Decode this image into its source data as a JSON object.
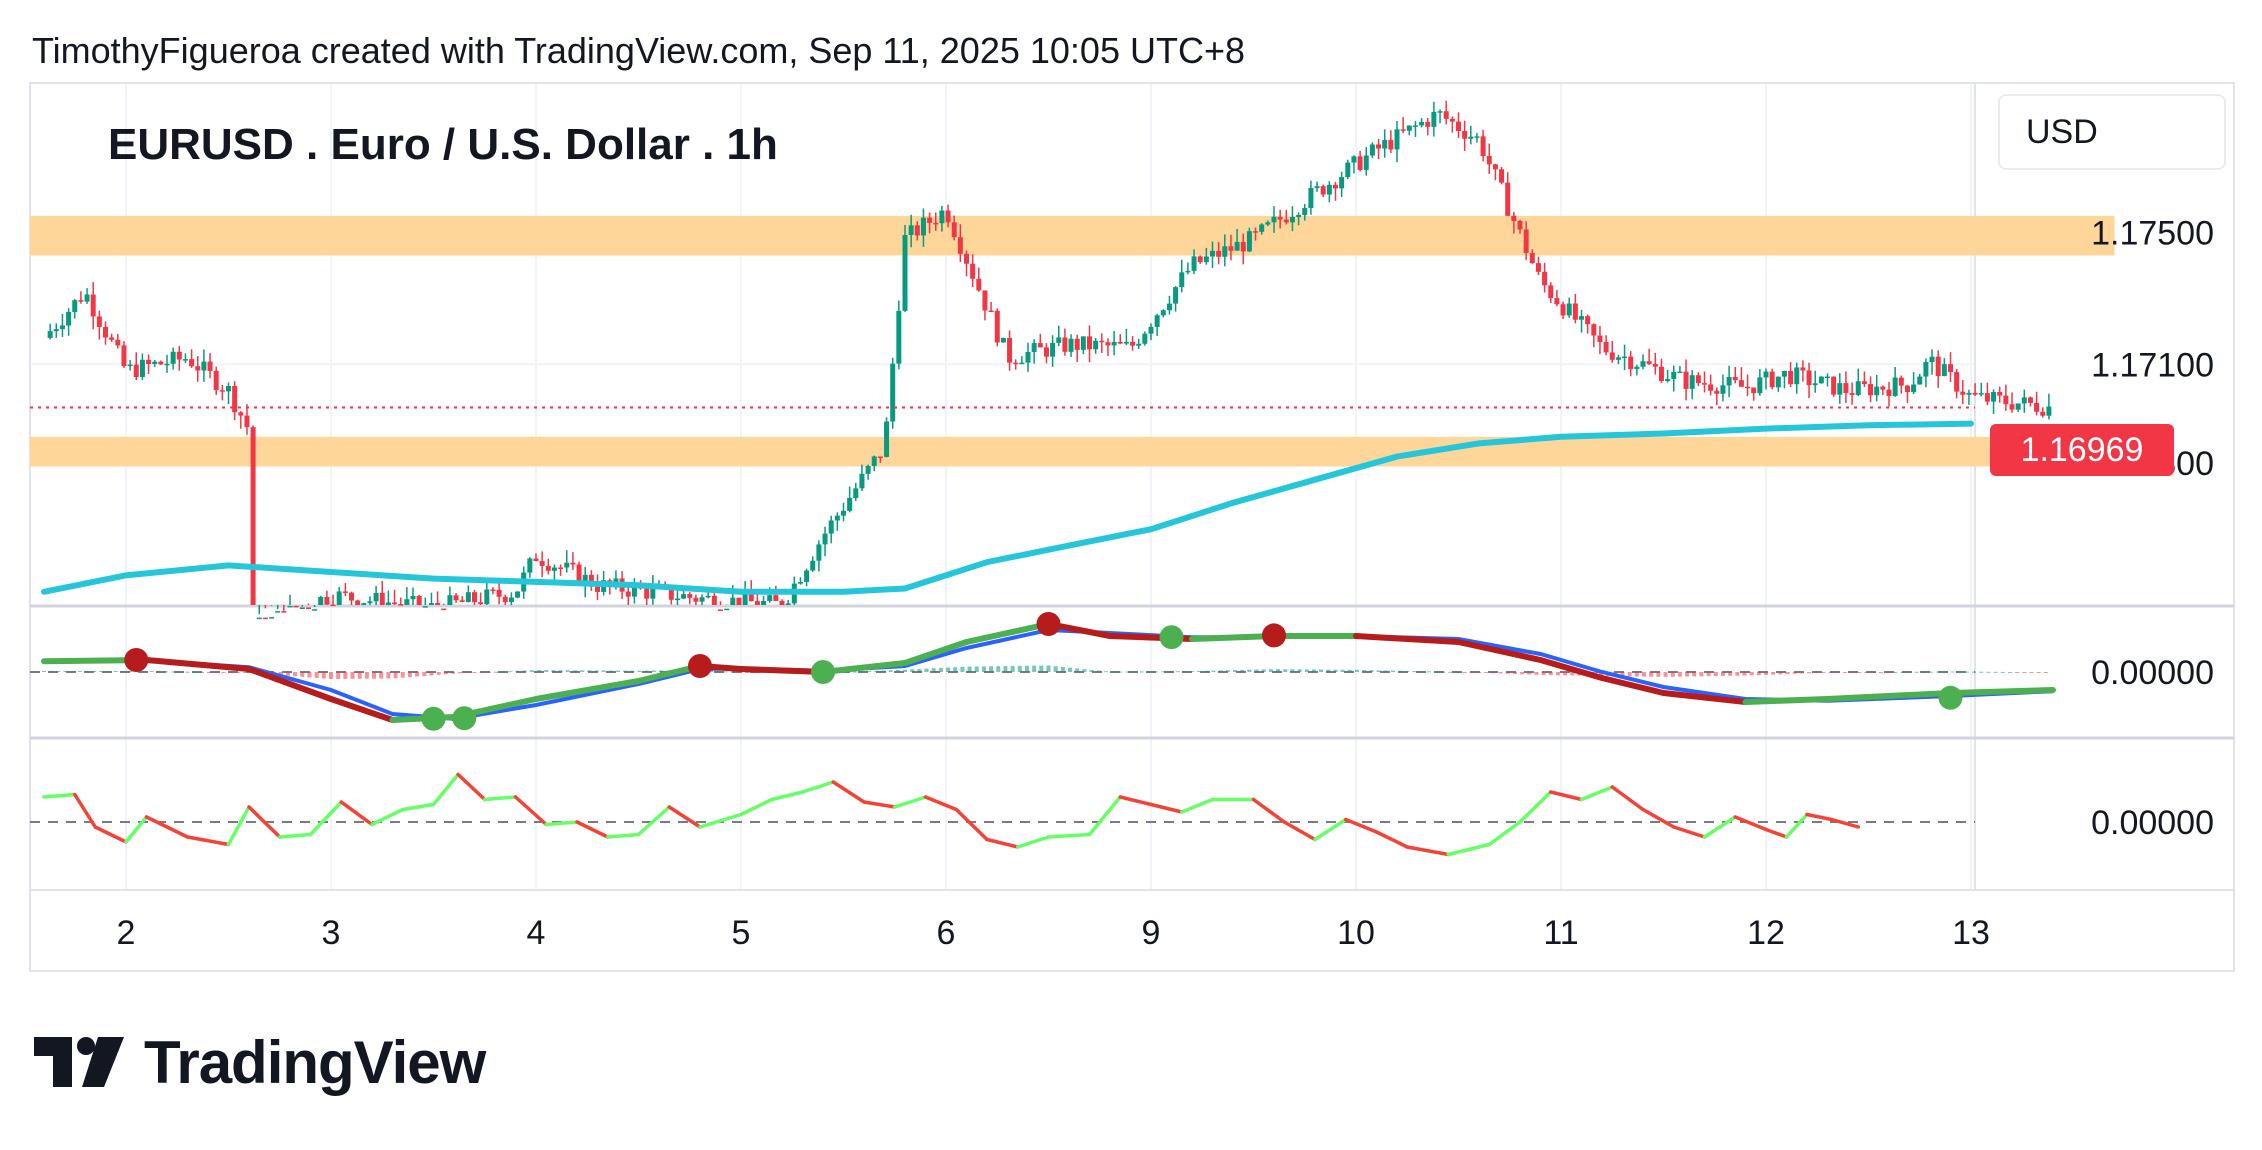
{
  "header": {
    "attribution": "TimothyFigueroa created with TradingView.com, Sep 11, 2025 10:05 UTC+8"
  },
  "chart": {
    "title": "EURUSD . Euro / U.S. Dollar . 1h",
    "currency": "USD",
    "current_price": "1.16969"
  },
  "branding": {
    "logo_text": "TradingView"
  },
  "colors": {
    "up_candle": "#089981",
    "down_candle": "#f23645",
    "ema_line": "#26c6da",
    "zone": "#ffd699",
    "macd_green": "#4caf50",
    "macd_red": "#b71c1c",
    "signal_blue": "#2962ff",
    "osc_up": "#66ff66",
    "osc_down": "#f44336"
  },
  "chart_data": [
    {
      "type": "candlestick",
      "title": "EURUSD . Euro / U.S. Dollar . 1h",
      "x_ticks": [
        "2",
        "3",
        "4",
        "5",
        "6",
        "9",
        "10",
        "11",
        "12",
        "13"
      ],
      "y_ticks": [
        "1.17500",
        "1.17100",
        "1.16800"
      ],
      "ylim": [
        1.1637,
        1.1795
      ],
      "current_price": 1.16969,
      "zones": [
        {
          "from": 1.1743,
          "to": 1.1755
        },
        {
          "from": 1.1679,
          "to": 1.1688
        }
      ],
      "ema_series": [
        [
          1.6,
          1.1641
        ],
        [
          2.0,
          1.1646
        ],
        [
          2.5,
          1.1649
        ],
        [
          3.0,
          1.1647
        ],
        [
          3.5,
          1.1645
        ],
        [
          4.0,
          1.1644
        ],
        [
          4.5,
          1.1643
        ],
        [
          5.0,
          1.1641
        ],
        [
          5.5,
          1.1641
        ],
        [
          5.8,
          1.1642
        ],
        [
          6.2,
          1.165
        ],
        [
          6.6,
          1.1655
        ],
        [
          7.0,
          1.166
        ],
        [
          7.4,
          1.1668
        ],
        [
          7.8,
          1.1675
        ],
        [
          8.2,
          1.1682
        ],
        [
          8.6,
          1.1686
        ],
        [
          9.0,
          1.1688
        ],
        [
          9.5,
          1.1689
        ],
        [
          10.0,
          1.16905
        ],
        [
          10.5,
          1.16915
        ],
        [
          11.0,
          1.1692
        ]
      ],
      "bars_summary": [
        [
          1.6,
          1.1718
        ],
        [
          1.8,
          1.1732
        ],
        [
          2.0,
          1.1708
        ],
        [
          2.3,
          1.1712
        ],
        [
          2.5,
          1.1702
        ],
        [
          2.6,
          1.169
        ],
        [
          2.62,
          1.163
        ],
        [
          3.0,
          1.164
        ],
        [
          3.5,
          1.1636
        ],
        [
          3.9,
          1.1641
        ],
        [
          4.0,
          1.1652
        ],
        [
          4.3,
          1.1643
        ],
        [
          4.8,
          1.1639
        ],
        [
          5.2,
          1.1637
        ],
        [
          5.4,
          1.1658
        ],
        [
          5.7,
          1.1685
        ],
        [
          5.8,
          1.1748
        ],
        [
          6.0,
          1.1757
        ],
        [
          6.3,
          1.1712
        ],
        [
          6.6,
          1.1716
        ],
        [
          6.9,
          1.1715
        ],
        [
          7.2,
          1.174
        ],
        [
          7.5,
          1.1748
        ],
        [
          7.8,
          1.1762
        ],
        [
          8.1,
          1.1775
        ],
        [
          8.4,
          1.1786
        ],
        [
          8.6,
          1.1778
        ],
        [
          8.9,
          1.1735
        ],
        [
          9.2,
          1.1715
        ],
        [
          9.6,
          1.1705
        ],
        [
          9.9,
          1.1703
        ],
        [
          10.1,
          1.1707
        ],
        [
          10.4,
          1.1702
        ],
        [
          10.7,
          1.1704
        ],
        [
          10.8,
          1.1711
        ],
        [
          11.0,
          1.17
        ],
        [
          11.4,
          1.16969
        ]
      ]
    },
    {
      "type": "line",
      "name": "MACD panel",
      "y_ticks": [
        "0.00000"
      ],
      "baseline": 0,
      "series_main": [
        [
          1.6,
          0.18
        ],
        [
          2.1,
          0.2
        ],
        [
          2.6,
          0.05
        ],
        [
          3.0,
          -0.45
        ],
        [
          3.3,
          -0.8
        ],
        [
          3.6,
          -0.75
        ],
        [
          4.0,
          -0.45
        ],
        [
          4.5,
          -0.15
        ],
        [
          4.8,
          0.1
        ],
        [
          5.0,
          0.05
        ],
        [
          5.4,
          0.0
        ],
        [
          5.8,
          0.15
        ],
        [
          6.1,
          0.5
        ],
        [
          6.5,
          0.8
        ],
        [
          6.8,
          0.6
        ],
        [
          7.2,
          0.55
        ],
        [
          7.6,
          0.6
        ],
        [
          8.0,
          0.6
        ],
        [
          8.5,
          0.5
        ],
        [
          8.9,
          0.2
        ],
        [
          9.2,
          -0.1
        ],
        [
          9.5,
          -0.35
        ],
        [
          9.9,
          -0.5
        ],
        [
          10.3,
          -0.45
        ],
        [
          10.9,
          -0.35
        ],
        [
          11.4,
          -0.3
        ]
      ],
      "series_signal": [
        [
          1.6,
          0.17
        ],
        [
          2.1,
          0.19
        ],
        [
          2.6,
          0.08
        ],
        [
          3.0,
          -0.3
        ],
        [
          3.3,
          -0.7
        ],
        [
          3.6,
          -0.78
        ],
        [
          4.0,
          -0.55
        ],
        [
          4.5,
          -0.2
        ],
        [
          4.8,
          0.05
        ],
        [
          5.0,
          0.06
        ],
        [
          5.4,
          0.02
        ],
        [
          5.8,
          0.1
        ],
        [
          6.1,
          0.4
        ],
        [
          6.5,
          0.7
        ],
        [
          6.8,
          0.65
        ],
        [
          7.2,
          0.58
        ],
        [
          7.6,
          0.58
        ],
        [
          8.0,
          0.6
        ],
        [
          8.5,
          0.55
        ],
        [
          8.9,
          0.3
        ],
        [
          9.2,
          0.0
        ],
        [
          9.5,
          -0.25
        ],
        [
          9.9,
          -0.45
        ],
        [
          10.3,
          -0.48
        ],
        [
          10.9,
          -0.4
        ],
        [
          11.4,
          -0.32
        ]
      ],
      "markers": [
        {
          "x": 2.05,
          "y": 0.2,
          "kind": "down"
        },
        {
          "x": 3.5,
          "y": -0.78,
          "kind": "up"
        },
        {
          "x": 3.65,
          "y": -0.77,
          "kind": "up"
        },
        {
          "x": 4.8,
          "y": 0.1,
          "kind": "down"
        },
        {
          "x": 5.4,
          "y": 0.0,
          "kind": "up"
        },
        {
          "x": 6.5,
          "y": 0.8,
          "kind": "down"
        },
        {
          "x": 7.1,
          "y": 0.58,
          "kind": "up"
        },
        {
          "x": 7.6,
          "y": 0.61,
          "kind": "down"
        },
        {
          "x": 10.9,
          "y": -0.43,
          "kind": "up"
        }
      ]
    },
    {
      "type": "line",
      "name": "oscillator panel",
      "y_ticks": [
        "0.00000"
      ],
      "baseline": 0,
      "series": [
        [
          1.6,
          0.5
        ],
        [
          1.75,
          0.55
        ],
        [
          1.85,
          -0.1
        ],
        [
          2.0,
          -0.4
        ],
        [
          2.1,
          0.1
        ],
        [
          2.3,
          -0.3
        ],
        [
          2.5,
          -0.45
        ],
        [
          2.6,
          0.3
        ],
        [
          2.75,
          -0.3
        ],
        [
          2.9,
          -0.25
        ],
        [
          3.05,
          0.4
        ],
        [
          3.2,
          -0.05
        ],
        [
          3.35,
          0.25
        ],
        [
          3.5,
          0.35
        ],
        [
          3.62,
          0.95
        ],
        [
          3.75,
          0.45
        ],
        [
          3.9,
          0.5
        ],
        [
          4.05,
          -0.05
        ],
        [
          4.2,
          0.0
        ],
        [
          4.35,
          -0.3
        ],
        [
          4.5,
          -0.25
        ],
        [
          4.65,
          0.3
        ],
        [
          4.8,
          -0.1
        ],
        [
          5.0,
          0.15
        ],
        [
          5.15,
          0.45
        ],
        [
          5.3,
          0.6
        ],
        [
          5.45,
          0.8
        ],
        [
          5.6,
          0.4
        ],
        [
          5.75,
          0.3
        ],
        [
          5.9,
          0.5
        ],
        [
          6.05,
          0.25
        ],
        [
          6.2,
          -0.35
        ],
        [
          6.35,
          -0.5
        ],
        [
          6.5,
          -0.3
        ],
        [
          6.7,
          -0.25
        ],
        [
          6.85,
          0.5
        ],
        [
          7.0,
          0.35
        ],
        [
          7.15,
          0.2
        ],
        [
          7.3,
          0.45
        ],
        [
          7.5,
          0.45
        ],
        [
          7.65,
          0.0
        ],
        [
          7.8,
          -0.35
        ],
        [
          7.95,
          0.05
        ],
        [
          8.1,
          -0.2
        ],
        [
          8.25,
          -0.5
        ],
        [
          8.45,
          -0.65
        ],
        [
          8.65,
          -0.45
        ],
        [
          8.8,
          0.0
        ],
        [
          8.95,
          0.6
        ],
        [
          9.1,
          0.45
        ],
        [
          9.25,
          0.7
        ],
        [
          9.4,
          0.25
        ],
        [
          9.55,
          -0.1
        ],
        [
          9.7,
          -0.3
        ],
        [
          9.85,
          0.1
        ],
        [
          10.0,
          -0.15
        ],
        [
          10.1,
          -0.3
        ],
        [
          10.2,
          0.15
        ],
        [
          10.32,
          0.05
        ],
        [
          10.45,
          -0.1
        ]
      ]
    }
  ]
}
